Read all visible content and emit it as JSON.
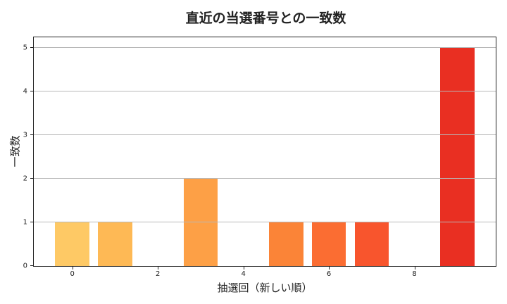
{
  "chart_data": {
    "type": "bar",
    "title": "直近の当選番号との一致数",
    "xlabel": "抽選回（新しい順）",
    "ylabel": "一致数",
    "x": [
      0,
      1,
      2,
      3,
      4,
      5,
      6,
      7,
      8,
      9
    ],
    "values": [
      1,
      1,
      0,
      2,
      0,
      1,
      1,
      1,
      0,
      5
    ],
    "colors": [
      "#fec965",
      "#feb955",
      "#fdaa48",
      "#fda046",
      "#fd8e3c",
      "#fb8437",
      "#fb6d32",
      "#f8552d",
      "#ec3c25",
      "#e92f22"
    ],
    "xticks": [
      0,
      2,
      4,
      6,
      8
    ],
    "yticks": [
      0,
      1,
      2,
      3,
      4,
      5
    ],
    "xlim": [
      -0.9,
      9.9
    ],
    "ylim": [
      0,
      5.25
    ],
    "grid": "y",
    "legend": null
  }
}
